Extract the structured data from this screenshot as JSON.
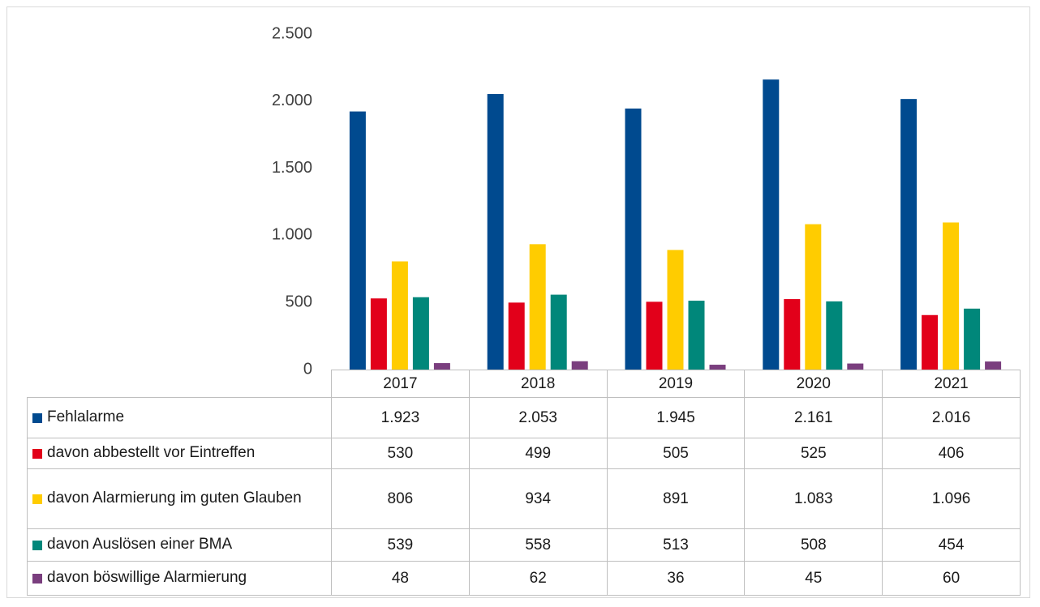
{
  "chart_data": {
    "type": "bar",
    "categories": [
      "2017",
      "2018",
      "2019",
      "2020",
      "2021"
    ],
    "series": [
      {
        "name": "Fehlalarme",
        "color": "#004a8f",
        "values": [
          1923,
          2053,
          1945,
          2161,
          2016
        ],
        "value_labels": [
          "1.923",
          "2.053",
          "1.945",
          "2.161",
          "2.016"
        ]
      },
      {
        "name": "davon abbestellt vor Eintreffen",
        "color": "#e2001a",
        "values": [
          530,
          499,
          505,
          525,
          406
        ],
        "value_labels": [
          "530",
          "499",
          "505",
          "525",
          "406"
        ]
      },
      {
        "name": "davon Alarmierung im guten Glauben",
        "color": "#ffcc00",
        "values": [
          806,
          934,
          891,
          1083,
          1096
        ],
        "value_labels": [
          "806",
          "934",
          "891",
          "1.083",
          "1.096"
        ]
      },
      {
        "name": "davon Auslösen einer BMA",
        "color": "#00877a",
        "values": [
          539,
          558,
          513,
          508,
          454
        ],
        "value_labels": [
          "539",
          "558",
          "513",
          "508",
          "454"
        ]
      },
      {
        "name": "davon böswillige Alarmierung",
        "color": "#7a3e7e",
        "values": [
          48,
          62,
          36,
          45,
          60
        ],
        "value_labels": [
          "48",
          "62",
          "36",
          "45",
          "60"
        ]
      }
    ],
    "ylim": [
      0,
      2500
    ],
    "yticks": [
      0,
      500,
      {
        "value": 1000,
        "label": "1.000"
      },
      {
        "value": 1500,
        "label": "1.500"
      },
      {
        "value": 2000,
        "label": "2.000"
      },
      {
        "value": 2500,
        "label": "2.500"
      }
    ],
    "grid": false
  }
}
